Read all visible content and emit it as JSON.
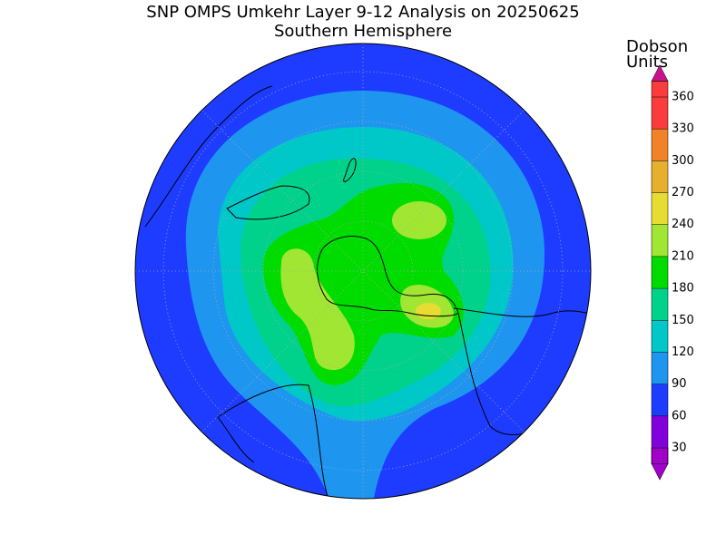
{
  "title": "SNP OMPS Umkehr Layer 9-12 Analysis on 20250625",
  "subtitle": "Southern Hemisphere",
  "colorbar": {
    "title": [
      "Dobson",
      "Units"
    ],
    "ticks": [
      30,
      60,
      90,
      120,
      150,
      180,
      210,
      240,
      270,
      300,
      330,
      360
    ],
    "colors": [
      "#a000c8",
      "#8200dc",
      "#1e3cff",
      "#1e96f0",
      "#00c8c8",
      "#00d28c",
      "#00dc00",
      "#a0e632",
      "#e6dc32",
      "#e6af2d",
      "#f08228",
      "#fa3c3c",
      "#c8148c"
    ]
  }
}
